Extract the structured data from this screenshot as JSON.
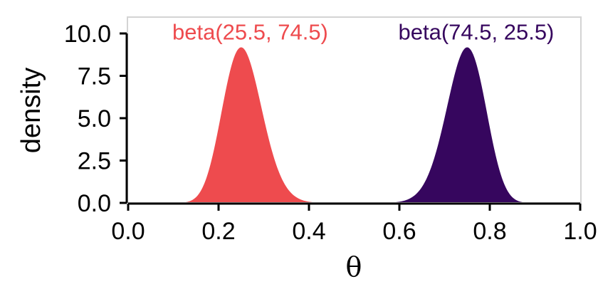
{
  "chart_data": {
    "type": "area",
    "title": "",
    "xlabel": "θ",
    "ylabel": "density",
    "xlim": [
      0,
      1
    ],
    "ylim": [
      0,
      11
    ],
    "grid": false,
    "x_ticks": [
      0,
      0.2,
      0.4,
      0.6,
      0.8,
      1.0
    ],
    "x_tick_labels": [
      "0.0",
      "0.2",
      "0.4",
      "0.6",
      "0.8",
      "1.0"
    ],
    "y_ticks": [
      0,
      2.5,
      5,
      7.5,
      10
    ],
    "y_tick_labels": [
      "0.0",
      "2.5",
      "5.0",
      "7.5",
      "10.0"
    ],
    "series": [
      {
        "name": "beta(25.5, 74.5)",
        "alpha": 25.5,
        "beta": 74.5,
        "color": "#EE4B4E",
        "label_x": 0.27,
        "label_y": 10.1
      },
      {
        "name": "beta(74.5, 25.5)",
        "alpha": 74.5,
        "beta": 25.5,
        "color": "#36065E",
        "label_x": 0.77,
        "label_y": 10.1
      }
    ]
  }
}
